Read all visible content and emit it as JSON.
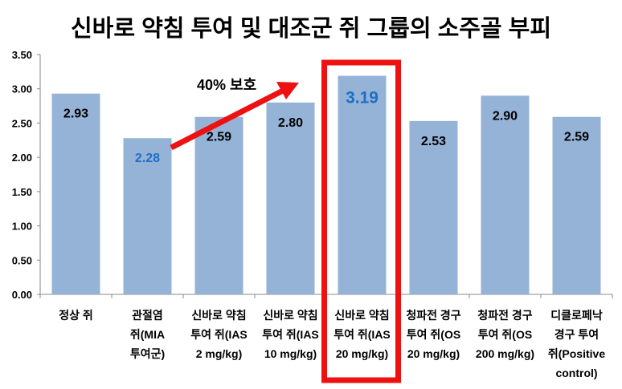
{
  "chart_data": {
    "type": "bar",
    "title": "신바로 약침 투여 및 대조군 쥐 그룹의 소주골 부피",
    "categories": [
      [
        "정상 쥐"
      ],
      [
        "관절염",
        "쥐(MIA",
        "투여군)"
      ],
      [
        "신바로 약침",
        "투여 쥐(IAS",
        "2 mg/kg)"
      ],
      [
        "신바로 약침",
        "투여 쥐(IAS",
        "10 mg/kg)"
      ],
      [
        "신바로 약침",
        "투여 쥐(IAS",
        "20 mg/kg)"
      ],
      [
        "청파전 경구",
        "투여 쥐(OS",
        "20 mg/kg)"
      ],
      [
        "청파전 경구",
        "투여 쥐(OS",
        "200 mg/kg)"
      ],
      [
        "디클로페낙",
        "경구 투여",
        "쥐(Positive",
        "control)"
      ]
    ],
    "values": [
      2.93,
      2.28,
      2.59,
      2.8,
      3.19,
      2.53,
      2.9,
      2.59
    ],
    "value_labels": [
      "2.93",
      "2.28",
      "2.59",
      "2.80",
      "3.19",
      "2.53",
      "2.90",
      "2.59"
    ],
    "highlighted_labels": [
      1,
      4
    ],
    "highlight_box_index": 4,
    "ylim": [
      0,
      3.5
    ],
    "yticks": [
      "0.00",
      "0.50",
      "1.00",
      "1.50",
      "2.00",
      "2.50",
      "3.00",
      "3.50"
    ],
    "annotation": "40% 보호",
    "colors": {
      "bar": "#95b3d7",
      "highlight_text": "#1f6fc5",
      "arrow": "#ee1111",
      "box": "#ee1111"
    },
    "grid": false,
    "xlabel": "",
    "ylabel": ""
  }
}
